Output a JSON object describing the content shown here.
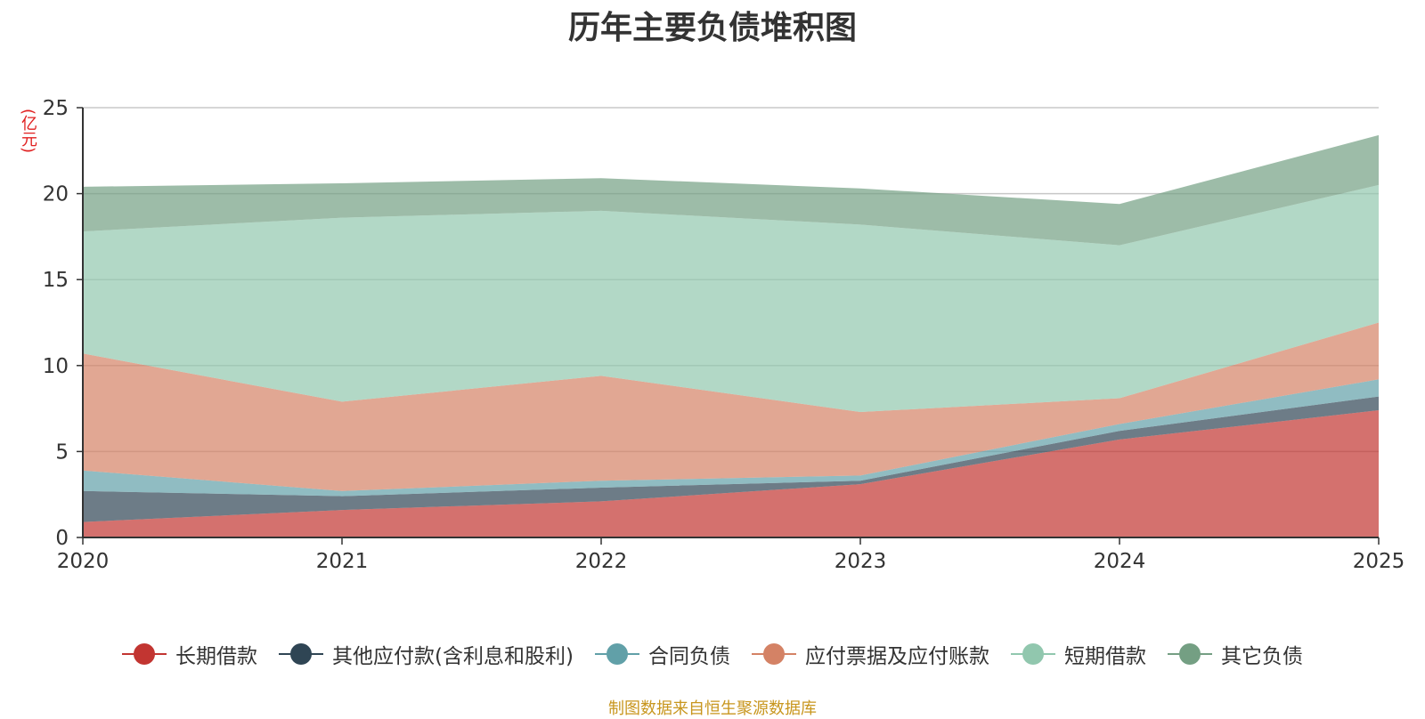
{
  "chart_data": {
    "type": "area",
    "stacked": true,
    "title": "历年主要负债堆积图",
    "ylabel": "(亿元)",
    "x": [
      "2020",
      "2021",
      "2022",
      "2023",
      "2024",
      "2025"
    ],
    "ylim": [
      0,
      25
    ],
    "yticks": [
      "0",
      "5",
      "10",
      "15",
      "20",
      "25"
    ],
    "grid": true,
    "legend_position": "bottom",
    "series": [
      {
        "name": "长期借款",
        "color": "#c23531",
        "values": [
          0.9,
          1.6,
          2.1,
          3.1,
          5.7,
          7.4
        ]
      },
      {
        "name": "其他应付款(含利息和股利)",
        "color": "#2f4554",
        "values": [
          1.8,
          0.8,
          0.8,
          0.2,
          0.5,
          0.8
        ]
      },
      {
        "name": "合同负债",
        "color": "#61a0a8",
        "values": [
          1.2,
          0.3,
          0.4,
          0.3,
          0.4,
          1.0
        ]
      },
      {
        "name": "应付票据及应付账款",
        "color": "#d48265",
        "values": [
          6.8,
          5.2,
          6.1,
          3.7,
          1.5,
          3.3
        ]
      },
      {
        "name": "短期借款",
        "color": "#91c7ae",
        "values": [
          7.1,
          10.7,
          9.6,
          10.9,
          8.9,
          8.0
        ]
      },
      {
        "name": "其它负债",
        "color": "#749f83",
        "values": [
          2.6,
          2.0,
          1.9,
          2.1,
          2.4,
          2.9
        ]
      }
    ]
  },
  "source": "制图数据来自恒生聚源数据库"
}
